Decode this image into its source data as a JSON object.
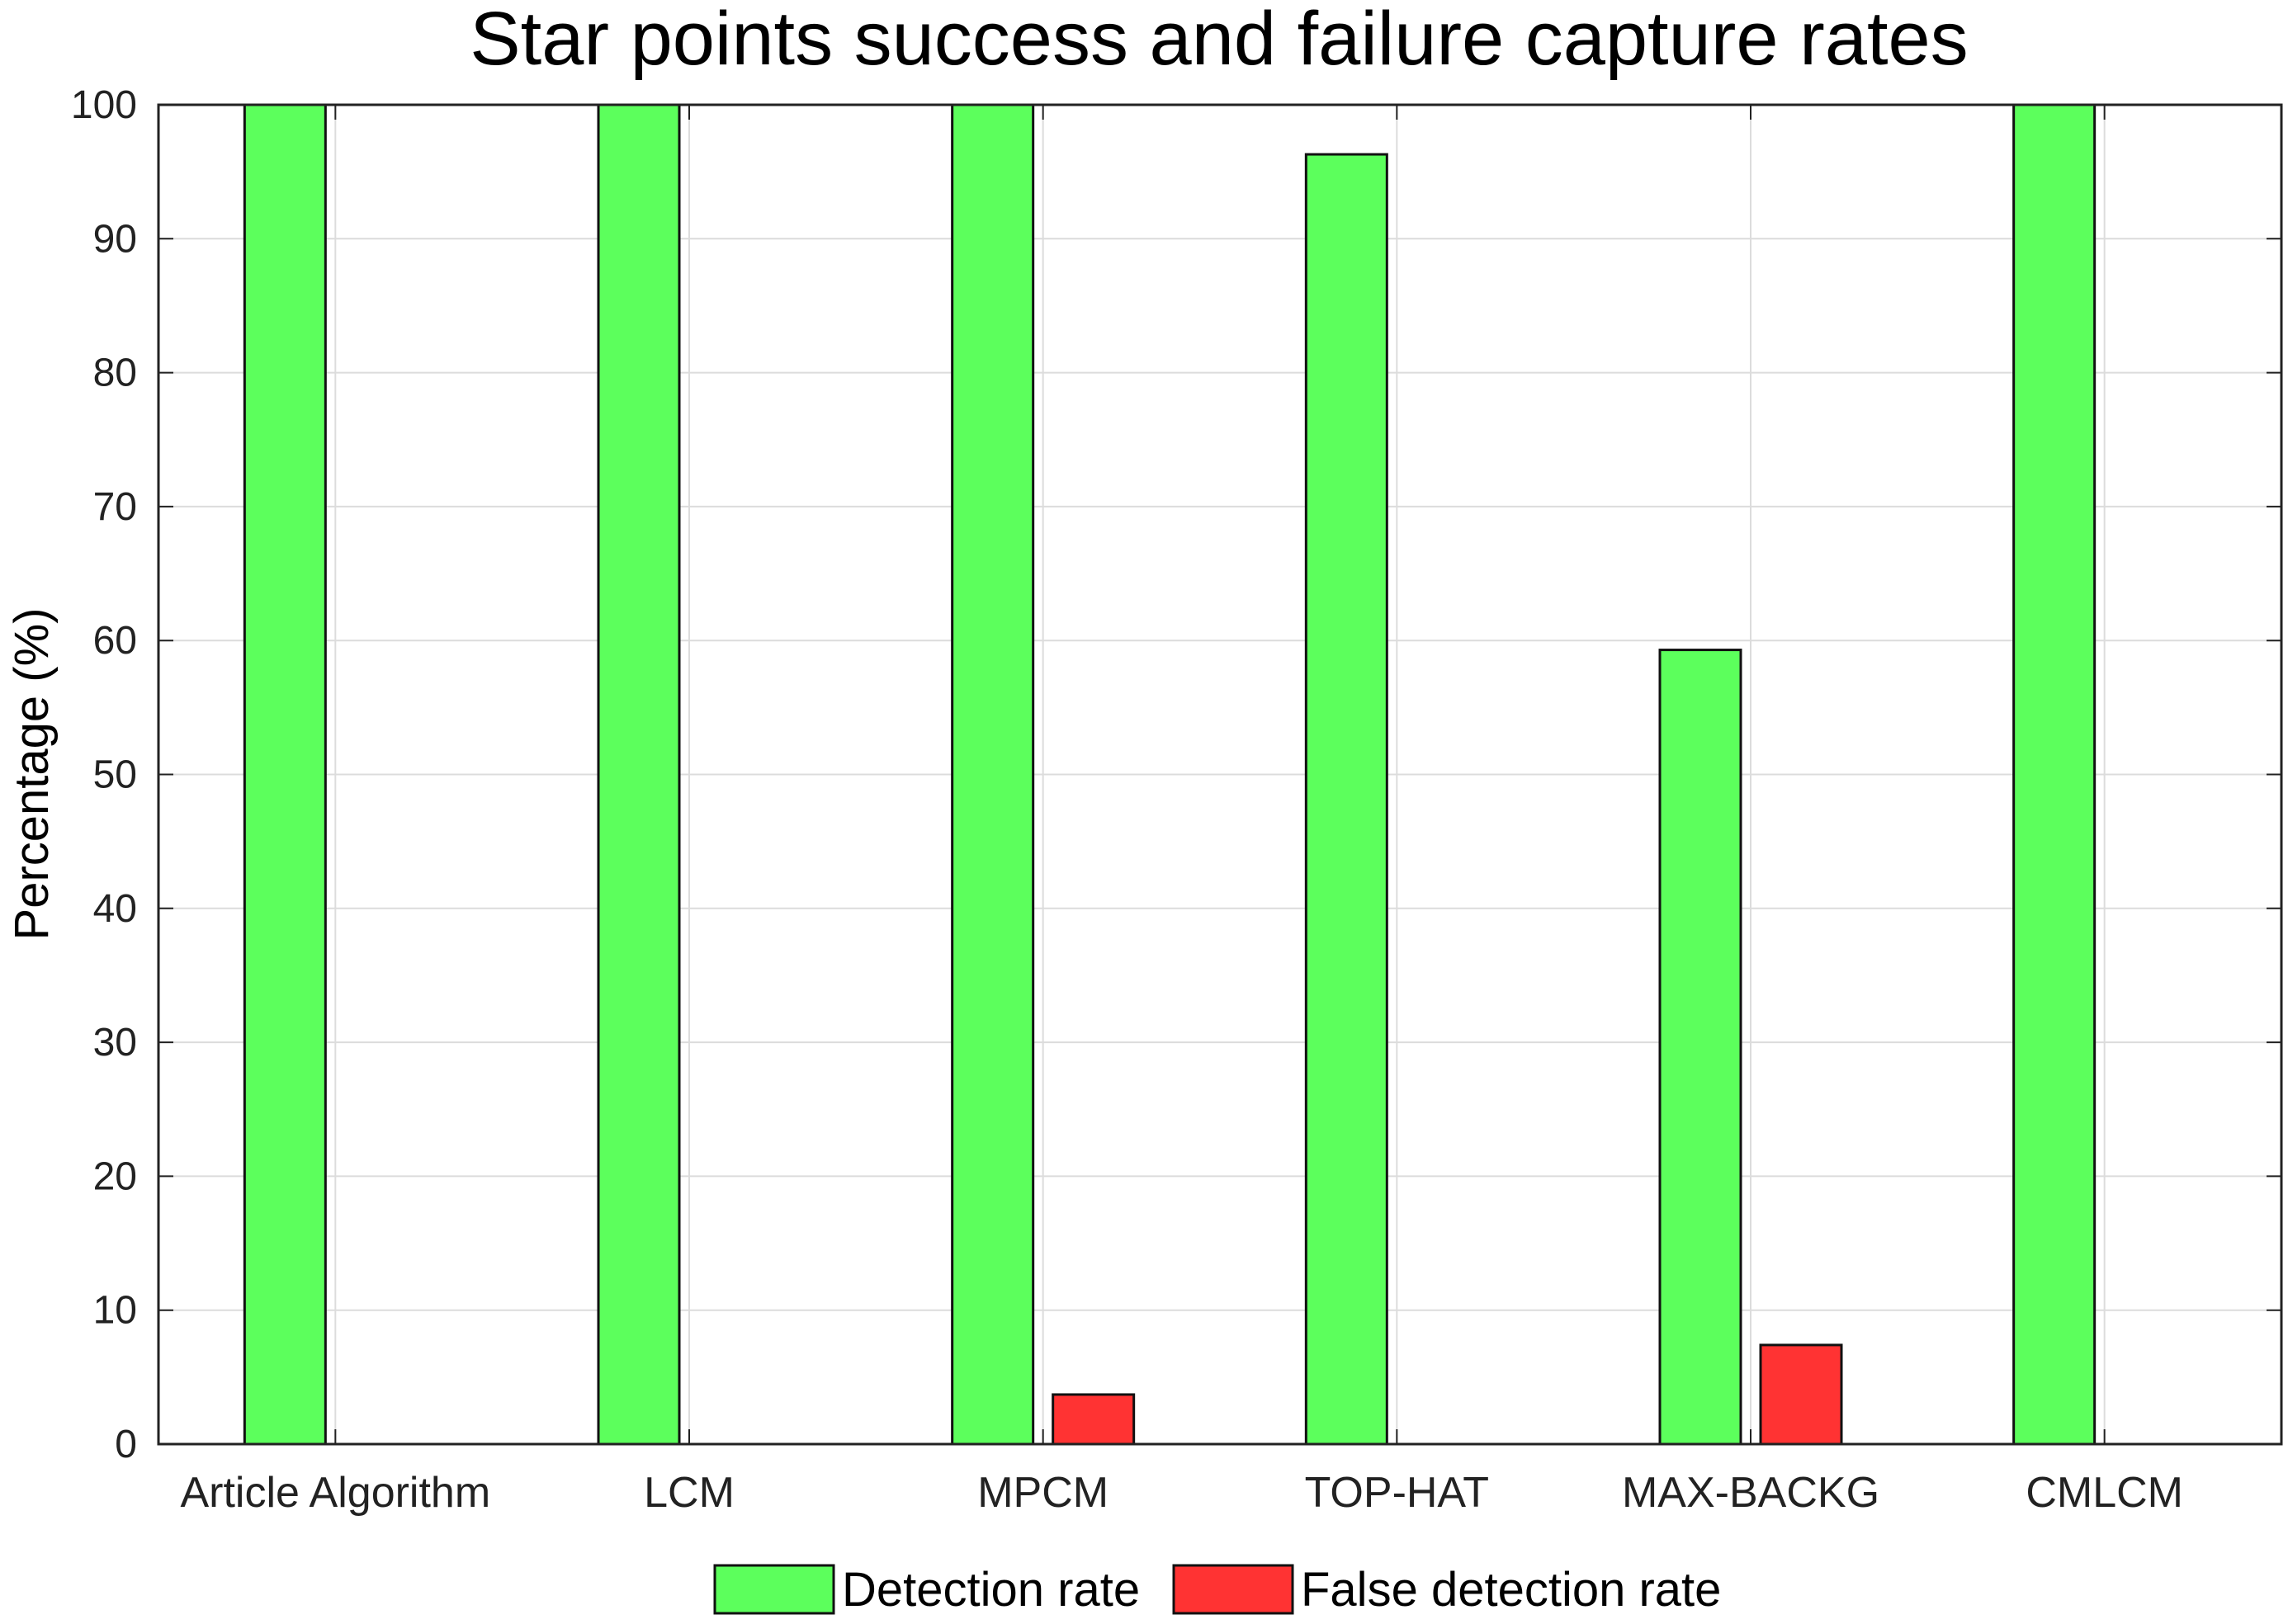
{
  "chart_data": {
    "type": "bar",
    "title": "Star points success and failure capture rates",
    "xlabel": "",
    "ylabel": "Percentage (%)",
    "ylim": [
      0,
      100
    ],
    "yticks": [
      "0",
      "10",
      "20",
      "30",
      "40",
      "50",
      "60",
      "70",
      "80",
      "90",
      "100"
    ],
    "grid": true,
    "legend_position": "bottom",
    "categories": [
      "Article Algorithm",
      "LCM",
      "MPCM",
      "TOP-HAT",
      "MAX-BACKG",
      "CMLCM"
    ],
    "series": [
      {
        "name": "Detection rate",
        "color": "#5cff5c",
        "values": [
          100,
          100,
          100,
          96.3,
          59.3,
          100
        ]
      },
      {
        "name": "False detection rate",
        "color": "#ff3333",
        "values": [
          0,
          0,
          3.7,
          0,
          7.4,
          0
        ]
      }
    ]
  }
}
